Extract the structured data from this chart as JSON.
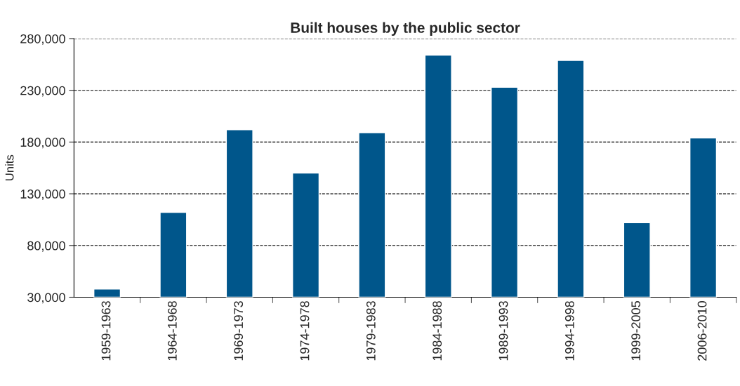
{
  "chart_data": {
    "type": "bar",
    "title": "Built houses by the public sector",
    "ylabel": "Units",
    "categories": [
      "1959-1963",
      "1964-1968",
      "1969-1973",
      "1974-1978",
      "1979-1983",
      "1984-1988",
      "1989-1993",
      "1994-1998",
      "1999-2005",
      "2006-2010"
    ],
    "values": [
      38000,
      112000,
      192000,
      150000,
      189000,
      264000,
      233000,
      259000,
      102000,
      184000
    ],
    "color": "#00568b",
    "ylim": [
      30000,
      280000
    ],
    "yticks": [
      {
        "value": 30000,
        "label": "30,000"
      },
      {
        "value": 80000,
        "label": "80,000"
      },
      {
        "value": 130000,
        "label": "130,000"
      },
      {
        "value": 180000,
        "label": "180,000"
      },
      {
        "value": 230000,
        "label": "230,000"
      },
      {
        "value": 280000,
        "label": "280,000"
      }
    ],
    "grid": "y"
  }
}
